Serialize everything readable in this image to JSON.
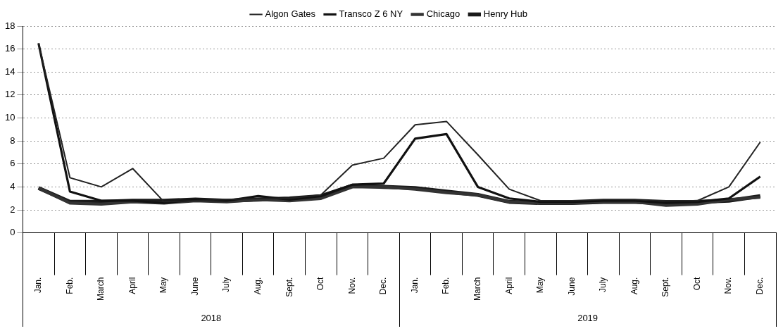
{
  "chart_data": {
    "type": "line",
    "categories": [
      "Jan.",
      "Feb.",
      "March",
      "April",
      "May",
      "June",
      "July",
      "Aug.",
      "Sept.",
      "Oct",
      "Nov.",
      "Dec.",
      "Jan.",
      "Feb.",
      "March",
      "April",
      "May",
      "June",
      "July",
      "Aug.",
      "Sept.",
      "Oct",
      "Nov.",
      "Dec."
    ],
    "series": [
      {
        "name": "Algon Gates",
        "color": "#222222",
        "values": [
          16.5,
          4.8,
          4.0,
          5.6,
          2.7,
          2.8,
          2.9,
          3.0,
          3.0,
          3.3,
          5.9,
          6.5,
          9.4,
          9.7,
          6.8,
          3.8,
          2.8,
          2.8,
          2.9,
          2.9,
          2.8,
          2.8,
          4.0,
          7.9
        ]
      },
      {
        "name": "Transco Z 6 NY",
        "color": "#111111",
        "values": [
          16.5,
          3.6,
          2.8,
          2.8,
          2.6,
          2.9,
          2.8,
          3.2,
          2.9,
          3.2,
          4.2,
          4.3,
          8.2,
          8.6,
          4.0,
          3.0,
          2.7,
          2.7,
          2.8,
          2.8,
          2.6,
          2.7,
          3.0,
          4.9
        ]
      },
      {
        "name": "Chicago",
        "color": "#333333",
        "values": [
          3.9,
          2.6,
          2.5,
          2.7,
          2.6,
          2.8,
          2.7,
          2.9,
          2.8,
          3.0,
          4.0,
          4.0,
          3.8,
          3.5,
          3.3,
          2.7,
          2.6,
          2.6,
          2.7,
          2.7,
          2.4,
          2.5,
          2.9,
          3.1
        ]
      },
      {
        "name": "Henry Hub",
        "color": "#1a1a1a",
        "values": [
          3.9,
          2.7,
          2.7,
          2.8,
          2.8,
          2.9,
          2.8,
          2.9,
          3.0,
          3.2,
          4.1,
          4.0,
          3.9,
          3.6,
          3.3,
          2.7,
          2.6,
          2.6,
          2.7,
          2.7,
          2.6,
          2.7,
          2.8,
          3.2
        ]
      }
    ],
    "ylim": [
      0,
      18
    ],
    "yticks": [
      0,
      2,
      4,
      6,
      8,
      10,
      12,
      14,
      16,
      18
    ],
    "grid": "y",
    "legend": "top",
    "marker": "none",
    "line_style": "solid",
    "annotations": [
      "2018",
      "2019"
    ]
  }
}
